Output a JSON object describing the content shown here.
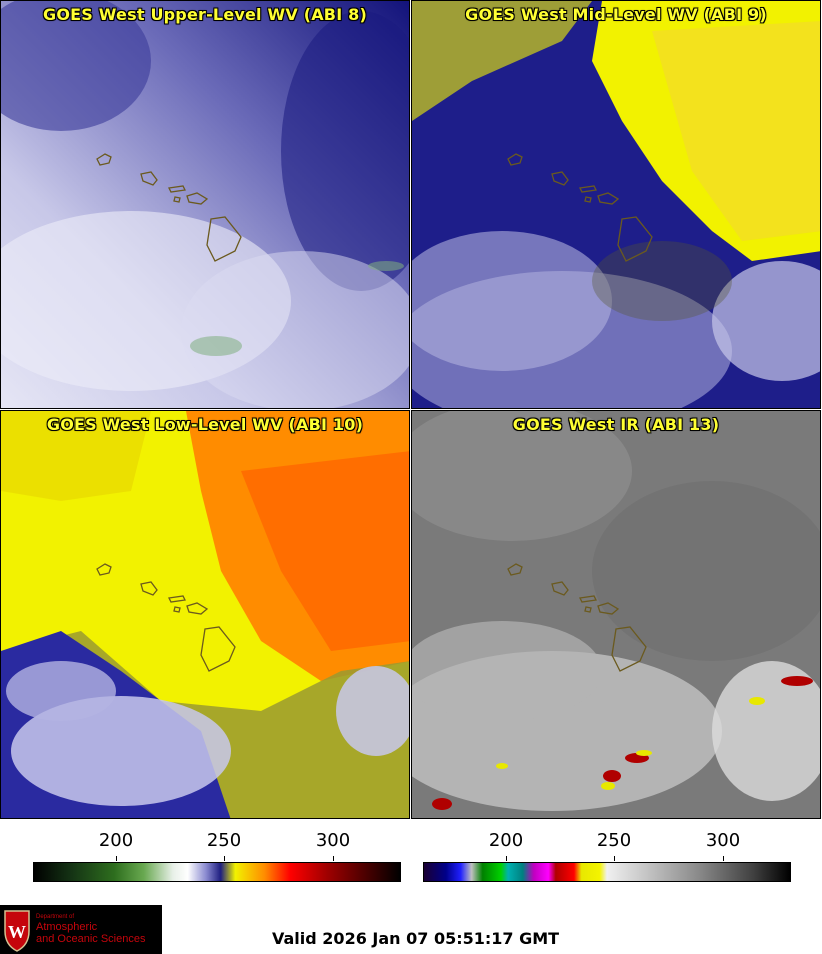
{
  "panels": [
    {
      "title": "GOES West Upper-Level WV (ABI 8)"
    },
    {
      "title": "GOES West Mid-Level WV (ABI 9)"
    },
    {
      "title": "GOES West Low-Level WV (ABI 10)"
    },
    {
      "title": "GOES West IR (ABI 13)"
    }
  ],
  "colorbars": [
    {
      "ticks": [
        "200",
        "250",
        "300"
      ]
    },
    {
      "ticks": [
        "200",
        "250",
        "300"
      ]
    }
  ],
  "logo": {
    "line1": "Department of",
    "line2": "Atmospheric",
    "line3": "and Oceanic Sciences"
  },
  "valid": "Valid 2026 Jan 07 05:51:17 GMT",
  "colors": {
    "title": "#ffff33",
    "wv_upper_bg": "#b9b9df",
    "wv_mid_bg": "#1e1e8a",
    "wv_low_bg": "#f2f200",
    "ir_bg": "#7a7a7a",
    "coast": "#6b5a1e"
  }
}
